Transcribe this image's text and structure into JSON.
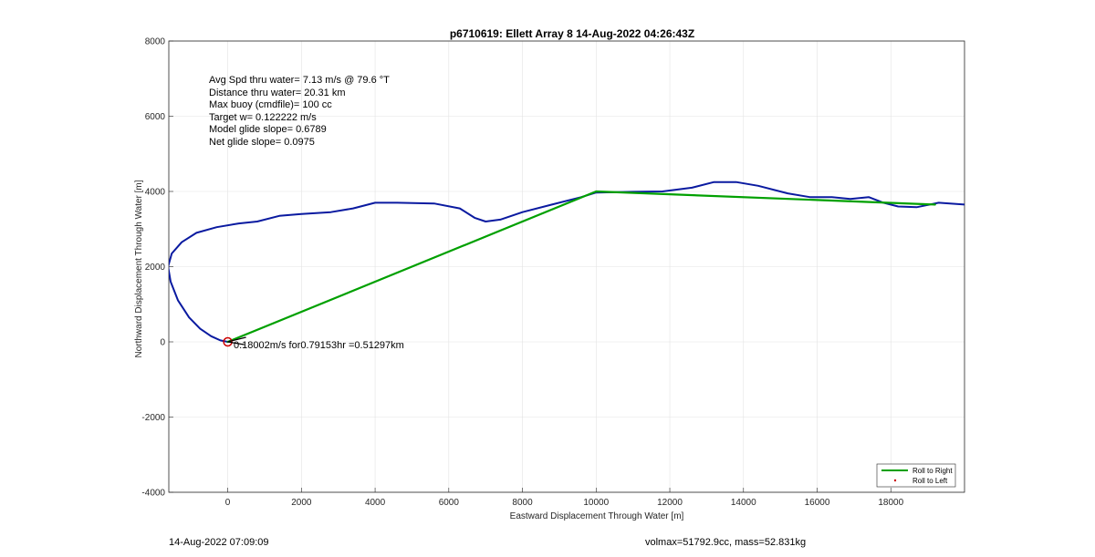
{
  "chart_data": {
    "type": "line",
    "title": "p6710619: Ellett Array 8 14-Aug-2022 04:26:43Z",
    "xlabel": "Eastward Displacement Through Water [m]",
    "ylabel": "Northward Displacement Through Water [m]",
    "xlim": [
      -1600,
      20000
    ],
    "ylim": [
      -4000,
      8000
    ],
    "xticks": [
      0,
      2000,
      4000,
      6000,
      8000,
      10000,
      12000,
      14000,
      16000,
      18000
    ],
    "yticks": [
      -4000,
      -2000,
      0,
      2000,
      4000,
      6000,
      8000
    ],
    "grid": true,
    "legend_placement": "bottom-right",
    "annotations": [
      "Avg Spd thru water=  7.13 m/s @  79.6 °T",
      "Distance thru water= 20.31 km",
      "Max buoy (cmdfile)= 100 cc",
      "Target w= 0.122222 m/s",
      "Model glide slope= 0.6789",
      "Net glide slope= 0.0975"
    ],
    "marker_label": "0.18002m/s for0.79153hr =0.51297km",
    "series": [
      {
        "name": "Roll to Right",
        "color": "#00a000",
        "x": [
          0,
          10000,
          19200
        ],
        "y": [
          0,
          4000,
          3650
        ]
      },
      {
        "name": "Roll to Left",
        "color": "#cc0000",
        "x": [],
        "y": []
      },
      {
        "color": "#0a1aa0",
        "x": [
          0,
          -200,
          -450,
          -750,
          -1050,
          -1350,
          -1550,
          -1620,
          -1520,
          -1250,
          -850,
          -300,
          300,
          800,
          1400,
          2000,
          2800,
          3400,
          4000,
          4600,
          5600,
          6300,
          6700,
          7000,
          7400,
          8000,
          8800,
          9600,
          10000,
          11000,
          11800,
          12600,
          13200,
          13800,
          14400,
          15200,
          15800,
          16400,
          16900,
          17400,
          17800,
          18200,
          18700,
          19300,
          20000
        ],
        "y": [
          0,
          40,
          150,
          350,
          650,
          1100,
          1600,
          2000,
          2350,
          2650,
          2900,
          3050,
          3150,
          3200,
          3350,
          3400,
          3450,
          3550,
          3700,
          3700,
          3680,
          3550,
          3300,
          3200,
          3250,
          3450,
          3650,
          3850,
          3970,
          3990,
          4000,
          4100,
          4250,
          4250,
          4150,
          3950,
          3850,
          3850,
          3800,
          3850,
          3700,
          3600,
          3580,
          3700,
          3650
        ]
      }
    ]
  },
  "footer": {
    "timestamp": "14-Aug-2022 07:09:09",
    "volmass": "volmax=51792.9cc, mass=52.831kg"
  }
}
